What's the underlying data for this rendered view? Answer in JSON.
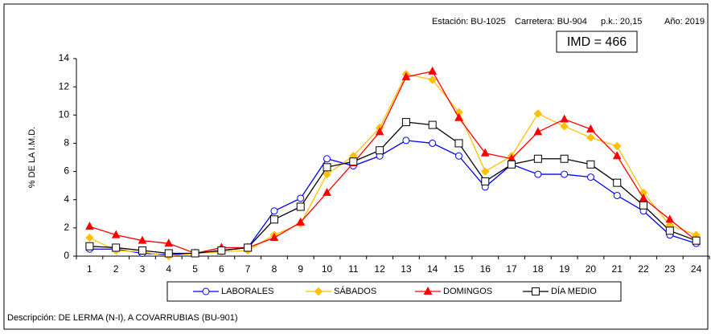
{
  "chart_data": {
    "type": "line",
    "annotations": [
      "Estación: BU-1025",
      "Carretera: BU-904",
      "p.k.: 20,15",
      "Año: 2019"
    ],
    "imd_label": "IMD = 466",
    "y_label": "% DE LA I.M.D.",
    "description": "Descripción: DE LERMA (N-I), A COVARRUBIAS (BU-901)",
    "categories": [
      1,
      2,
      3,
      4,
      5,
      6,
      7,
      8,
      9,
      10,
      11,
      12,
      13,
      14,
      15,
      16,
      17,
      18,
      19,
      20,
      21,
      22,
      23,
      24
    ],
    "ylim": [
      0,
      14
    ],
    "yticks": [
      0,
      2,
      4,
      6,
      8,
      10,
      12,
      14
    ],
    "grid": false,
    "series": [
      {
        "name": "LABORALES",
        "color": "#0000ff",
        "marker": "circle",
        "values": [
          0.5,
          0.5,
          0.2,
          0.1,
          0.2,
          0.4,
          0.6,
          3.2,
          4.1,
          6.9,
          6.4,
          7.1,
          8.2,
          8.0,
          7.1,
          4.9,
          6.5,
          5.8,
          5.8,
          5.6,
          4.3,
          3.2,
          1.5,
          0.9
        ]
      },
      {
        "name": "SÁBADOS",
        "color": "#ffc000",
        "marker": "diamond",
        "values": [
          1.3,
          0.4,
          0.3,
          0.0,
          0.2,
          0.3,
          0.4,
          1.5,
          2.3,
          5.8,
          7.1,
          9.1,
          12.9,
          12.5,
          10.2,
          6.0,
          7.1,
          10.1,
          9.2,
          8.4,
          7.8,
          4.5,
          2.2,
          1.5
        ]
      },
      {
        "name": "DOMINGOS",
        "color": "#ff0000",
        "marker": "triangle",
        "values": [
          2.1,
          1.5,
          1.1,
          0.9,
          0.2,
          0.6,
          0.6,
          1.3,
          2.4,
          4.5,
          6.6,
          8.8,
          12.7,
          13.1,
          9.8,
          7.3,
          6.9,
          8.8,
          9.7,
          9.0,
          7.1,
          4.1,
          2.6,
          1.1
        ]
      },
      {
        "name": "DÍA MEDIO",
        "color": "#000000",
        "marker": "square",
        "values": [
          0.7,
          0.6,
          0.4,
          0.2,
          0.2,
          0.4,
          0.6,
          2.6,
          3.5,
          6.3,
          6.7,
          7.5,
          9.5,
          9.3,
          8.0,
          5.3,
          6.5,
          6.9,
          6.9,
          6.5,
          5.2,
          3.6,
          1.8,
          1.1
        ]
      }
    ]
  }
}
